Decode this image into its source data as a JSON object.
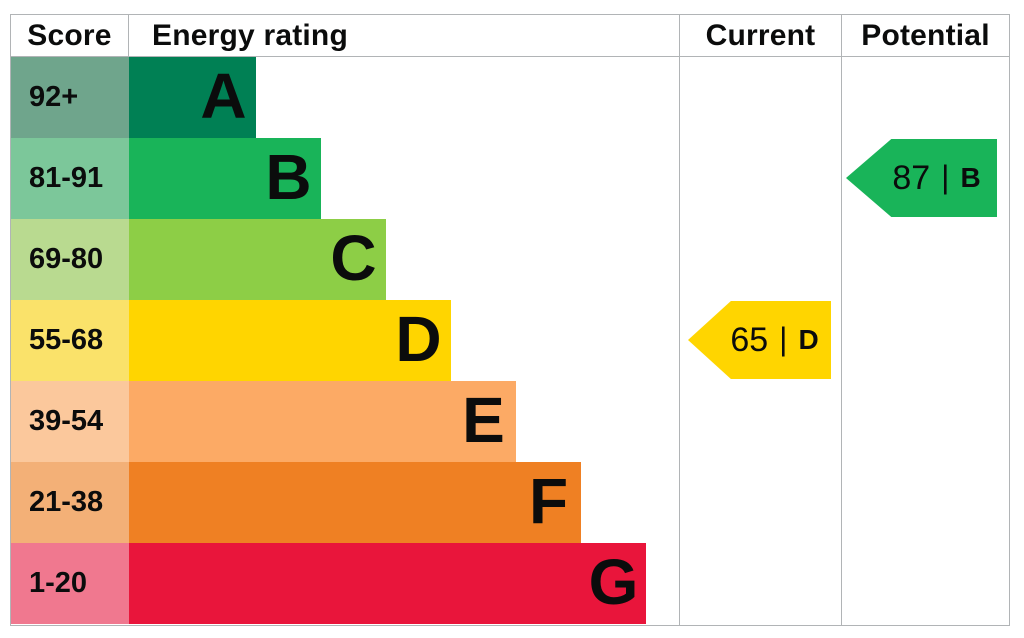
{
  "headers": {
    "score": "Score",
    "rating": "Energy rating",
    "current": "Current",
    "potential": "Potential"
  },
  "separator": "|",
  "colors": {
    "border": "#b1b4b6",
    "text": "#0b0c0c",
    "background": "#ffffff"
  },
  "chart_data": {
    "type": "bar",
    "orientation": "horizontal",
    "description": "Energy performance certificate (EPC) rating chart; bar length increases from band A to G",
    "bands": [
      {
        "letter": "A",
        "score_range": "92+",
        "bar_color": "#008054",
        "score_cell_color": "#6fa58c"
      },
      {
        "letter": "B",
        "score_range": "81-91",
        "bar_color": "#19b459",
        "score_cell_color": "#7cc79a"
      },
      {
        "letter": "C",
        "score_range": "69-80",
        "bar_color": "#8dce46",
        "score_cell_color": "#b9da90"
      },
      {
        "letter": "D",
        "score_range": "55-68",
        "bar_color": "#ffd500",
        "score_cell_color": "#fae26a"
      },
      {
        "letter": "E",
        "score_range": "39-54",
        "bar_color": "#fcaa65",
        "score_cell_color": "#fbc89c"
      },
      {
        "letter": "F",
        "score_range": "21-38",
        "bar_color": "#ef8023",
        "score_cell_color": "#f3b077"
      },
      {
        "letter": "G",
        "score_range": "1-20",
        "bar_color": "#e9153b",
        "score_cell_color": "#f0788f"
      }
    ],
    "current": {
      "value": 65,
      "band": "D",
      "color": "#ffd500"
    },
    "potential": {
      "value": 87,
      "band": "B",
      "color": "#19b459"
    }
  }
}
